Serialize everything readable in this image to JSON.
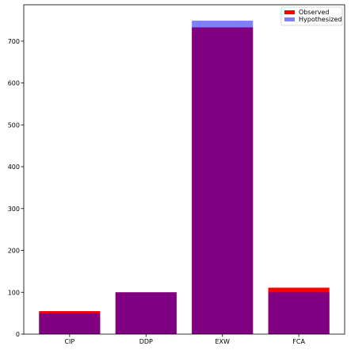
{
  "chart_data": {
    "type": "bar",
    "categories": [
      "CIP",
      "DDP",
      "EXW",
      "FCA"
    ],
    "series": [
      {
        "name": "Observed",
        "values": [
          55,
          100,
          733,
          111
        ],
        "color": "#ff0000",
        "alpha": 1.0
      },
      {
        "name": "Hypothesized",
        "values": [
          50,
          100,
          749,
          100
        ],
        "color": "#0000ff",
        "alpha": 0.5
      }
    ],
    "ylim": [
      0,
      787
    ],
    "yticks": [
      0,
      100,
      200,
      300,
      400,
      500,
      600,
      700
    ],
    "grid": false,
    "legend_position": "top-right"
  }
}
